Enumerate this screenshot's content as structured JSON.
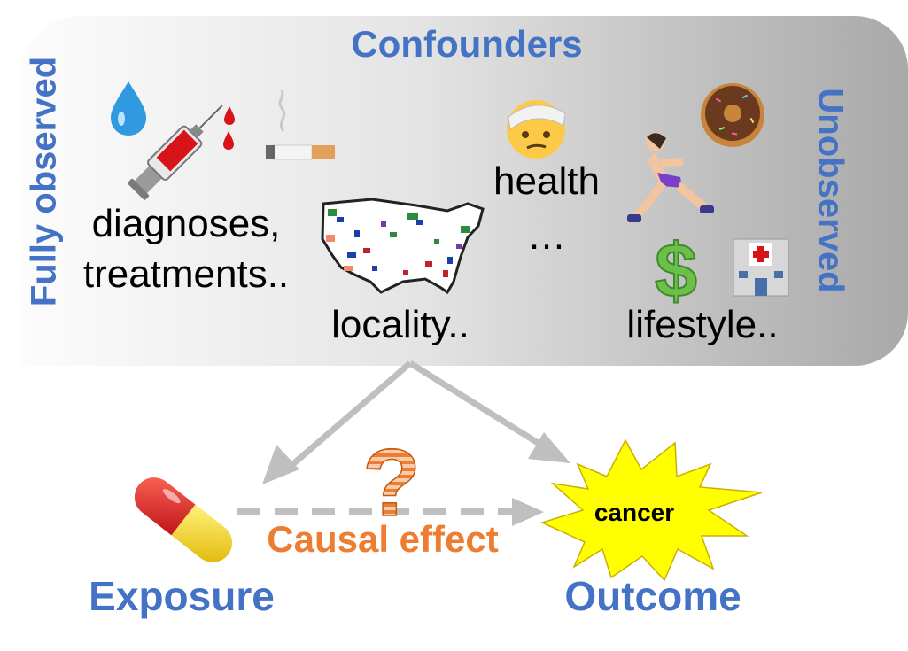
{
  "title": "Confounders",
  "side_labels": {
    "left": "Fully observed",
    "right": "Unobserved"
  },
  "confounders": {
    "diagnoses_line1": "diagnoses,",
    "diagnoses_line2": "treatments..",
    "locality": "locality..",
    "health": "health",
    "ellipsis": "…",
    "lifestyle": "lifestyle.."
  },
  "exposure": "Exposure",
  "outcome": "Outcome",
  "outcome_badge": "cancer",
  "effect_label": "Causal effect",
  "question_mark": "?",
  "icons": [
    "water-drop-icon",
    "syringe-icon",
    "cigarette-icon",
    "usa-map-icon",
    "bandaged-face-icon",
    "runner-icon",
    "donut-icon",
    "dollar-sign-icon",
    "hospital-icon",
    "pill-capsule-icon",
    "explosion-icon"
  ],
  "colors": {
    "blue": "#4472c4",
    "orange": "#ed7d31",
    "arrow_gray": "#bfbfbf",
    "burst_yellow": "#ffff00"
  }
}
